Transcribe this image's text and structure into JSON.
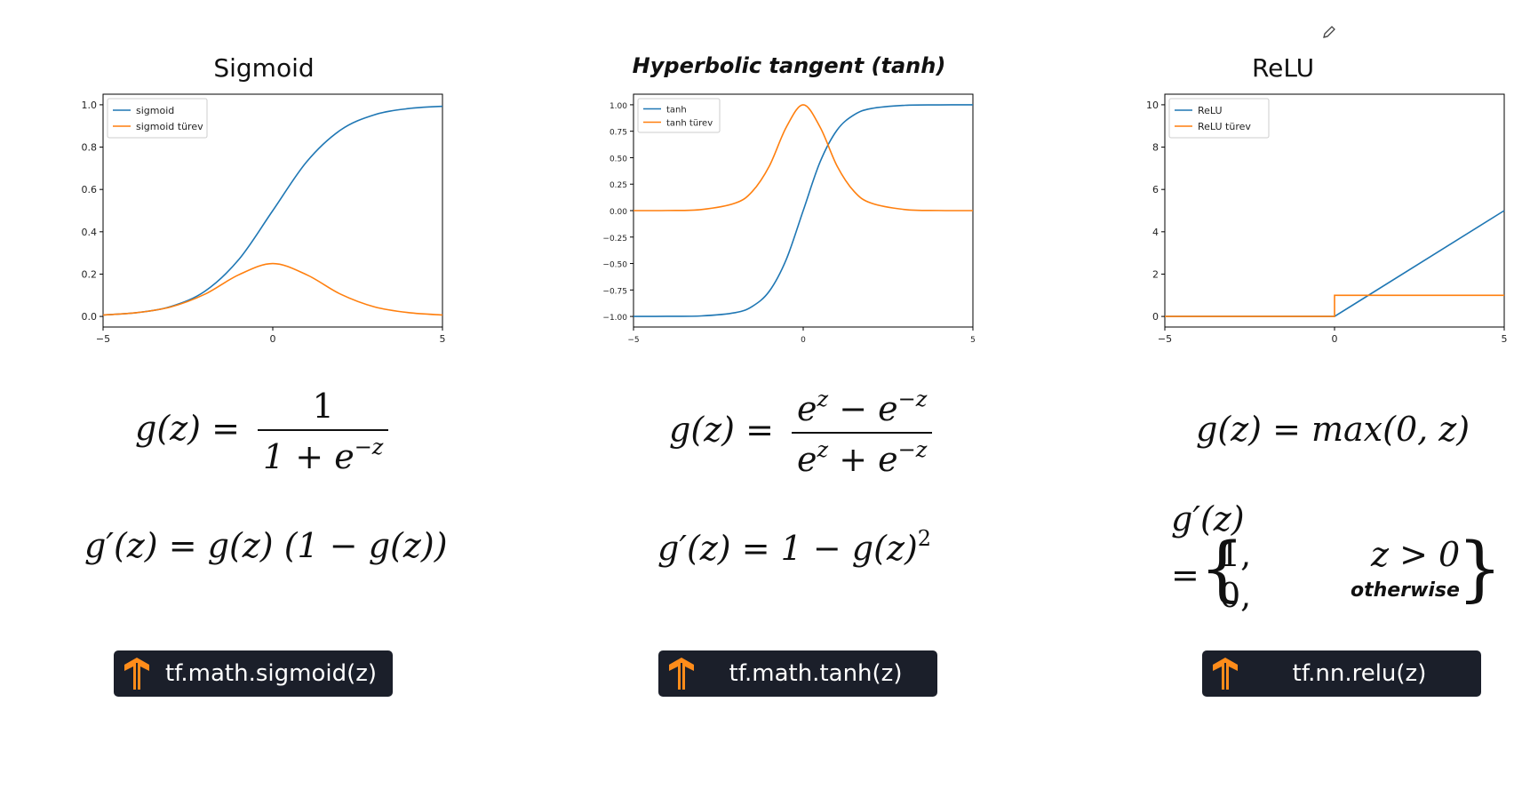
{
  "panels": [
    {
      "title": "Sigmoid",
      "badge": "tf.math.sigmoid(z)"
    },
    {
      "title": "Hyperbolic tangent (tanh)",
      "badge": "tf.math.tanh(z)"
    },
    {
      "title": "ReLU",
      "badge": "tf.nn.relu(z)"
    }
  ],
  "colors": {
    "blue": "#1f77b4",
    "orange": "#ff7f0e",
    "badge_bg": "#1b1f2a",
    "logo": "#ff8c1a"
  },
  "icons": {
    "logo": "tensorflow-logo-icon",
    "pen": "pen-icon"
  },
  "chart_data": [
    {
      "type": "line",
      "title": "Sigmoid",
      "xlim": [
        -5,
        5
      ],
      "ylim": [
        0.0,
        1.0
      ],
      "xticks": [
        "−5",
        "0",
        "5"
      ],
      "yticks": [
        "0.0",
        "0.2",
        "0.4",
        "0.6",
        "0.8",
        "1.0"
      ],
      "x": [
        -5,
        -4,
        -3,
        -2,
        -1,
        0,
        1,
        2,
        3,
        4,
        5
      ],
      "series": [
        {
          "name": "sigmoid",
          "values": [
            0.007,
            0.018,
            0.047,
            0.119,
            0.269,
            0.5,
            0.731,
            0.881,
            0.953,
            0.982,
            0.993
          ]
        },
        {
          "name": "sigmoid türev",
          "values": [
            0.007,
            0.018,
            0.045,
            0.105,
            0.197,
            0.25,
            0.197,
            0.105,
            0.045,
            0.018,
            0.007
          ]
        }
      ],
      "legend": "top-left"
    },
    {
      "type": "line",
      "title": "Hyperbolic tangent (tanh)",
      "xlim": [
        -5,
        5
      ],
      "ylim": [
        -1.0,
        1.0
      ],
      "xticks": [
        "−5",
        "0",
        "5"
      ],
      "yticks": [
        "−1.00",
        "−0.75",
        "−0.50",
        "−0.25",
        "0.00",
        "0.25",
        "0.50",
        "0.75",
        "1.00"
      ],
      "x": [
        -5,
        -4,
        -3,
        -2,
        -1.5,
        -1,
        -0.5,
        0,
        0.5,
        1,
        1.5,
        2,
        3,
        4,
        5
      ],
      "series": [
        {
          "name": "tanh",
          "values": [
            -1.0,
            -0.999,
            -0.995,
            -0.964,
            -0.905,
            -0.762,
            -0.462,
            0.0,
            0.462,
            0.762,
            0.905,
            0.964,
            0.995,
            0.999,
            1.0
          ]
        },
        {
          "name": "tanh türev",
          "values": [
            0.0,
            0.001,
            0.01,
            0.071,
            0.181,
            0.42,
            0.787,
            1.0,
            0.787,
            0.42,
            0.181,
            0.071,
            0.01,
            0.001,
            0.0
          ]
        }
      ],
      "legend": "top-left"
    },
    {
      "type": "line",
      "title": "ReLU",
      "xlim": [
        -5,
        5
      ],
      "ylim": [
        0,
        10
      ],
      "xticks": [
        "−5",
        "0",
        "5"
      ],
      "yticks": [
        "0",
        "2",
        "4",
        "6",
        "8",
        "10"
      ],
      "x": [
        -5,
        0,
        5
      ],
      "series": [
        {
          "name": "ReLU",
          "values": [
            0,
            0,
            5
          ]
        },
        {
          "name": "ReLU türev",
          "values": [
            0,
            1,
            1
          ]
        }
      ],
      "legend": "top-left"
    }
  ],
  "formulas": {
    "sigmoid_g_lhs": "g(z) =",
    "sigmoid_num": "1",
    "sigmoid_den": "1 + e",
    "sigmoid_den_exp": "−z",
    "sigmoid_deriv": "g′(z) = g(z) (1 − g(z))",
    "tanh_g_lhs": "g(z) =",
    "tanh_num_a": "e",
    "tanh_num_a_exp": "z",
    "tanh_num_b": " − e",
    "tanh_num_b_exp": "−z",
    "tanh_den_a": "e",
    "tanh_den_a_exp": "z",
    "tanh_den_b": " + e",
    "tanh_den_b_exp": "−z",
    "tanh_deriv": "g′(z) = 1 − g(z)",
    "tanh_deriv_exp": "2",
    "relu_g": "g(z) = max(0, z)",
    "relu_deriv_lhs": "g′(z)",
    "relu_eq": "=",
    "relu_case1_val": "1,",
    "relu_case1_cond": "z > 0",
    "relu_case2_val": "0,",
    "relu_case2_cond": "otherwise"
  }
}
